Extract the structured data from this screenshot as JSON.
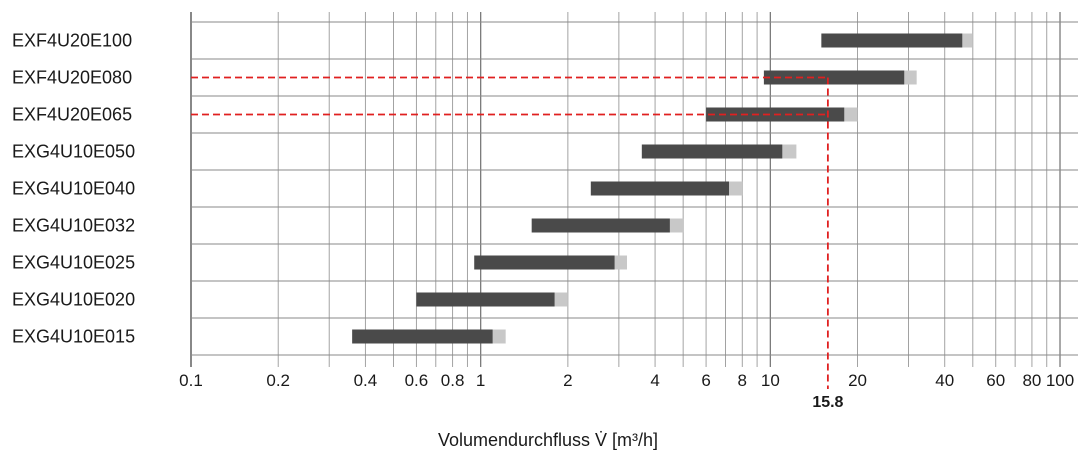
{
  "chart_data": {
    "type": "bar",
    "orientation": "horizontal",
    "xscale": "log",
    "xlim": [
      0.1,
      110
    ],
    "categories": [
      "EXF4U20E100",
      "EXF4U20E080",
      "EXF4U20E065",
      "EXG4U10E050",
      "EXG4U10E040",
      "EXG4U10E032",
      "EXG4U10E025",
      "EXG4U10E020",
      "EXG4U10E015"
    ],
    "ranges": [
      {
        "min": 15,
        "max": 46,
        "ext_max": 50
      },
      {
        "min": 9.5,
        "max": 29,
        "ext_max": 32
      },
      {
        "min": 6,
        "max": 18,
        "ext_max": 20
      },
      {
        "min": 3.6,
        "max": 11,
        "ext_max": 12.3
      },
      {
        "min": 2.4,
        "max": 7.2,
        "ext_max": 8
      },
      {
        "min": 1.5,
        "max": 4.5,
        "ext_max": 5
      },
      {
        "min": 0.95,
        "max": 2.9,
        "ext_max": 3.2
      },
      {
        "min": 0.6,
        "max": 1.8,
        "ext_max": 2
      },
      {
        "min": 0.36,
        "max": 1.1,
        "ext_max": 1.22
      }
    ],
    "xticks": [
      0.1,
      0.2,
      0.4,
      0.6,
      0.8,
      1,
      2,
      4,
      6,
      8,
      10,
      20,
      40,
      60,
      80,
      100
    ],
    "xtick_labels": [
      "0.1",
      "0.2",
      "0.4",
      "0.6",
      "0.8",
      "1",
      "2",
      "4",
      "6",
      "8",
      "10",
      "20",
      "40",
      "60",
      "80",
      "100"
    ],
    "xlabel": "Volumendurchfluss V̇ [m³/h]",
    "marker": {
      "value": 15.8,
      "label": "15.8",
      "highlight_categories": [
        "EXF4U20E080",
        "EXF4U20E065"
      ]
    },
    "colors": {
      "bar": "#4a4a4a",
      "extension": "#c8c8c8",
      "grid": "#999999",
      "marker": "#e02020"
    }
  }
}
